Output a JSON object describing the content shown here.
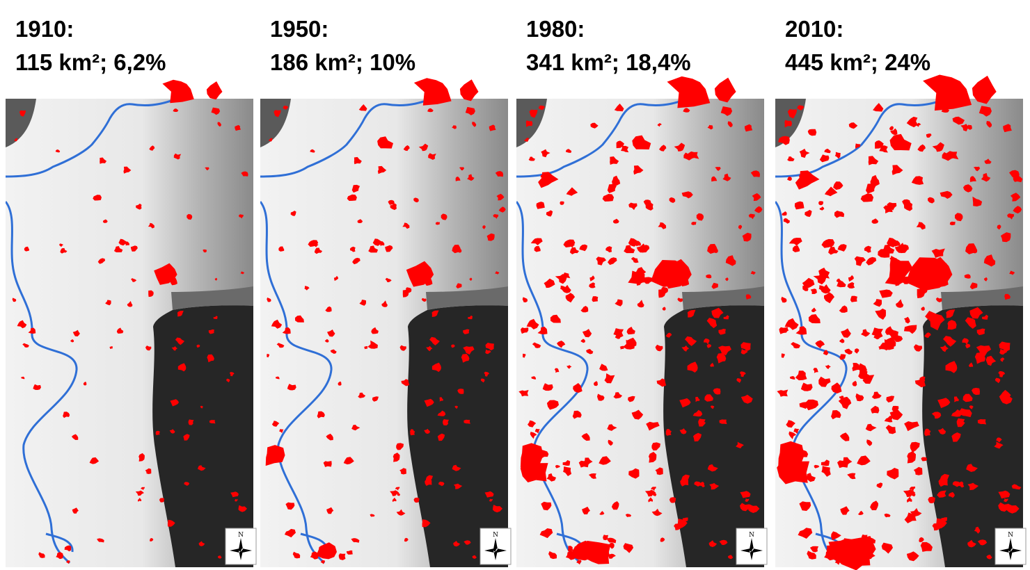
{
  "panels": [
    {
      "year": "1910:",
      "stats": "115 km²; 6,2%",
      "stage": 0
    },
    {
      "year": "1950:",
      "stats": "186 km²; 10%",
      "stage": 1
    },
    {
      "year": "1980:",
      "stats": "341 km²; 18,4%",
      "stage": 2
    },
    {
      "year": "2010:",
      "stats": "445 km²; 24%",
      "stage": 3
    }
  ],
  "colors": {
    "urban": "#ff0000",
    "river": "#2f6fd6",
    "terrain_low": "#f2f2f2",
    "terrain_mid": "#b4b4b4",
    "terrain_high": "#262626"
  },
  "icons": {
    "compass": "north-arrow-compass-icon"
  },
  "compass_label": "N"
}
